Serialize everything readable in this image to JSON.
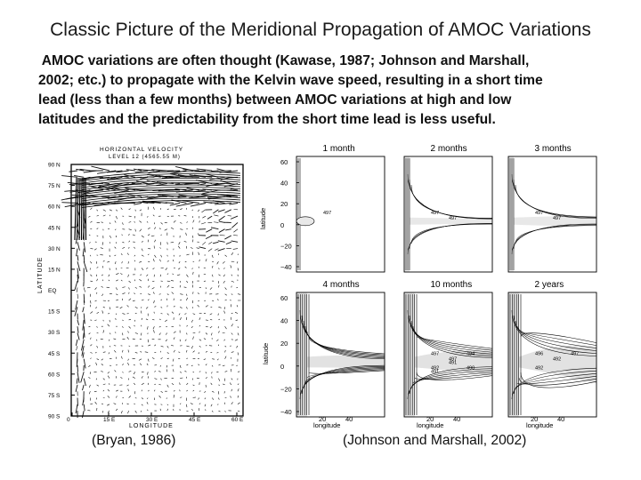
{
  "slide": {
    "title": "Classic Picture of the Meridional Propagation of AMOC Variations",
    "body_lines": [
      " AMOC variations are often thought (Kawase, 1987; Johnson and Marshall,",
      "2002; etc.) to propagate with the Kelvin wave speed, resulting in a short time",
      "lead (less than a few months) between AMOC variations at high and low",
      "latitudes and the predictability from the short time lead is less useful."
    ],
    "caption_left": "(Bryan, 1986)",
    "caption_right": "(Johnson and Marshall, 2002)"
  },
  "left_figure": {
    "header_line1": "HORIZONTAL VELOCITY",
    "header_line2": "LEVEL 12 (4565.55 M)",
    "y_axis_label": "LATITUDE",
    "x_axis_label": "LONGITUDE",
    "y_ticks": [
      "90 N",
      "75 N",
      "60 N",
      "45 N",
      "30 N",
      "15 N",
      "EQ",
      "15 S",
      "30 S",
      "45 S",
      "60 S",
      "75 S",
      "90 S"
    ],
    "x_ticks": [
      "0",
      "15 E",
      "30 E",
      "45 E",
      "60 E"
    ]
  },
  "right_figure": {
    "panel_titles": [
      "1 month",
      "2 months",
      "3 months",
      "4 months",
      "10 months",
      "2 years"
    ],
    "y_label": "latitude",
    "x_label": "longitude",
    "top_y_ticks": [
      "60",
      "40",
      "20",
      "0",
      "−20",
      "−40"
    ],
    "bottom_y_ticks": [
      "60",
      "40",
      "20",
      "0",
      "−20",
      "−40"
    ],
    "x_ticks": [
      "20",
      "40"
    ],
    "contour_labels": {
      "p1": [
        "497"
      ],
      "p2": [
        "497",
        "497"
      ],
      "p3": [
        "497",
        "497"
      ],
      "p5": [
        "497",
        "497",
        "494",
        "492",
        "491",
        "490",
        "491"
      ],
      "p6": [
        "496",
        "492",
        "497",
        "492"
      ]
    }
  }
}
